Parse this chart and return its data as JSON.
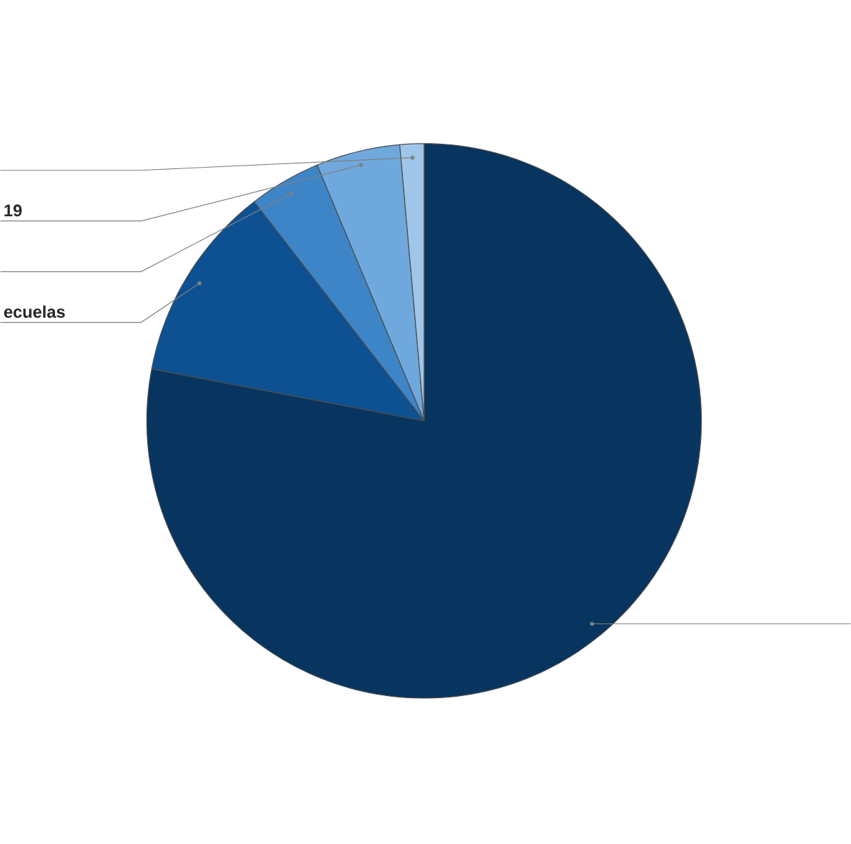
{
  "chart_data": {
    "type": "pie",
    "categories": [
      null,
      "ecuelas",
      null,
      "19",
      null
    ],
    "values": [
      78,
      11.5,
      4.2,
      4.9,
      1.4
    ],
    "colors": [
      "#08355f",
      "#0d5193",
      "#3d85c6",
      "#6fa8dc",
      "#9fc5e8"
    ]
  }
}
